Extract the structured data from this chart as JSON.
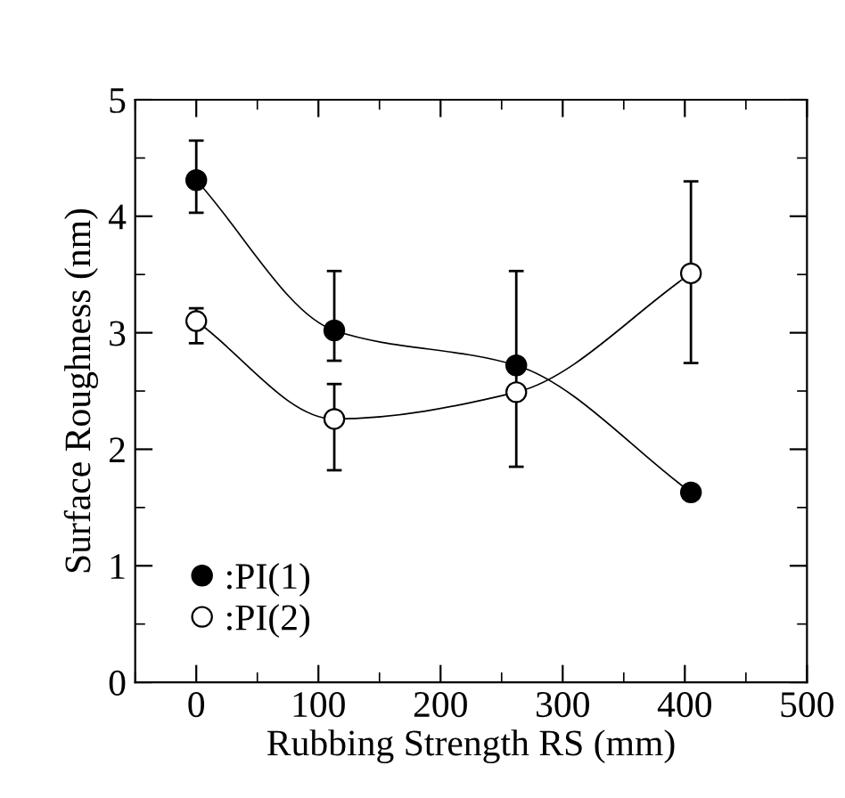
{
  "chart_data": {
    "type": "line",
    "xlabel": "Rubbing Strength RS (mm)",
    "ylabel": "Surface Roughness (nm)",
    "xlim": [
      -50,
      500
    ],
    "xticks": [
      0,
      100,
      200,
      300,
      400,
      500
    ],
    "ylim": [
      0,
      5
    ],
    "yticks": [
      0,
      1,
      2,
      3,
      4,
      5
    ],
    "x": [
      0,
      113,
      262,
      405
    ],
    "series": [
      {
        "name": ":PI(1)",
        "color": "#000000",
        "marker": "circle",
        "values": [
          4.31,
          3.02,
          2.72,
          1.63
        ],
        "errors": [
          [
            4.03,
            4.65
          ],
          [
            2.76,
            3.53
          ],
          [
            1.85,
            3.53
          ],
          [
            1.58,
            1.68
          ]
        ]
      },
      {
        "name": ":PI(2)",
        "color": "#000000",
        "marker": "circle",
        "values": [
          3.1,
          2.26,
          2.49,
          3.51
        ],
        "errors": [
          [
            2.91,
            3.21
          ],
          [
            1.82,
            2.56
          ],
          null,
          [
            2.74,
            4.3
          ]
        ]
      }
    ],
    "legend": "bottom left",
    "grid": false
  }
}
